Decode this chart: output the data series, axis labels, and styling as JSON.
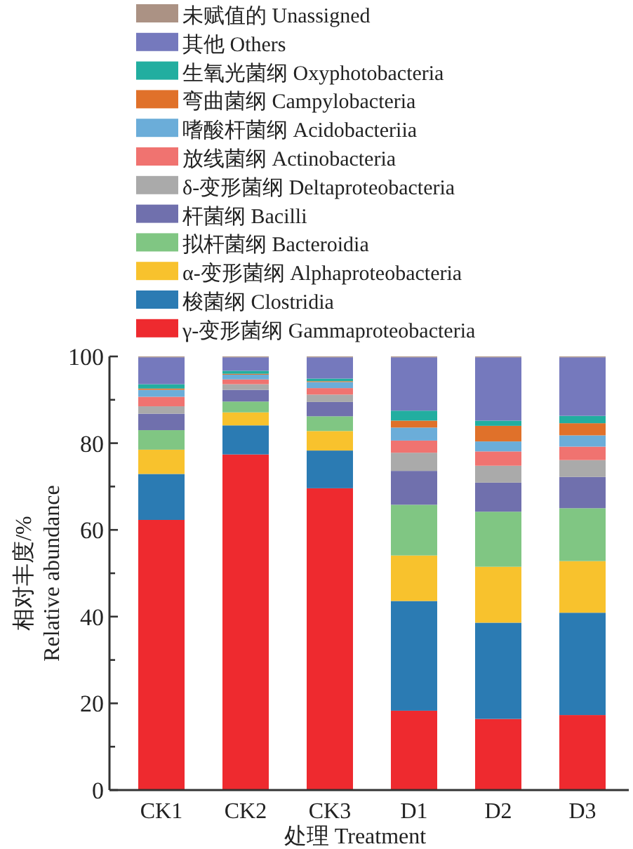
{
  "chart_data": {
    "type": "bar",
    "stacked": true,
    "xlabel": "处理 Treatment",
    "ylabel": "相对丰度/% Relative abundance",
    "categories": [
      "CK1",
      "CK2",
      "CK3",
      "D1",
      "D2",
      "D3"
    ],
    "ylim": [
      0,
      100
    ],
    "yticks": [
      0,
      {
        "value": 10,
        "label": null
      },
      20,
      {
        "value": 30,
        "label": null
      },
      40,
      {
        "value": 50,
        "label": null
      },
      60,
      {
        "value": 70,
        "label": null
      },
      80,
      {
        "value": 90,
        "label": null
      },
      100
    ],
    "legend": "top",
    "grid": false,
    "series": [
      {
        "name": "γ-变形菌纲 Gammaproteobacteria",
        "color": "#ee2a2f",
        "values": [
          62.3,
          77.4,
          69.6,
          18.3,
          16.4,
          17.3
        ]
      },
      {
        "name": "梭菌纲 Clostridia",
        "color": "#2b7bb3",
        "values": [
          10.6,
          6.7,
          8.7,
          25.3,
          22.2,
          23.6
        ]
      },
      {
        "name": "α-变形菌纲 Alphaproteobacteria",
        "color": "#f8c22d",
        "values": [
          5.6,
          3.0,
          4.5,
          10.5,
          12.9,
          11.9
        ]
      },
      {
        "name": "拟杆菌纲 Bacteroidia",
        "color": "#80c683",
        "values": [
          4.5,
          2.5,
          3.4,
          11.7,
          12.7,
          12.2
        ]
      },
      {
        "name": "杆菌纲 Bacilli",
        "color": "#7070ad",
        "values": [
          3.8,
          2.7,
          3.3,
          7.8,
          6.7,
          7.2
        ]
      },
      {
        "name": "δ-变形菌纲 Deltaproteobacteria",
        "color": "#aaaaaa",
        "values": [
          1.7,
          1.3,
          1.7,
          4.2,
          3.9,
          3.9
        ]
      },
      {
        "name": "放线菌纲 Actinobacteria",
        "color": "#f07370",
        "values": [
          2.2,
          1.1,
          1.5,
          2.8,
          3.3,
          3.1
        ]
      },
      {
        "name": "嗜酸杆菌纲 Acidobacteriia",
        "color": "#6badd9",
        "values": [
          1.6,
          1.1,
          1.4,
          3.0,
          2.3,
          2.6
        ]
      },
      {
        "name": "弯曲菌纲 Campylobacteria",
        "color": "#e0712a",
        "values": [
          0.3,
          0.2,
          0.2,
          1.6,
          3.6,
          2.8
        ]
      },
      {
        "name": "生氧光菌纲 Oxyphotobacteria",
        "color": "#22aea0",
        "values": [
          1.0,
          0.7,
          0.6,
          2.3,
          1.2,
          1.7
        ]
      },
      {
        "name": "其他 Others",
        "color": "#7579bd",
        "values": [
          6.2,
          3.1,
          4.9,
          12.3,
          14.6,
          13.5
        ]
      },
      {
        "name": "未赋值的 Unassigned",
        "color": "#ab9284",
        "values": [
          0.2,
          0.2,
          0.2,
          0.2,
          0.2,
          0.2
        ]
      }
    ]
  }
}
